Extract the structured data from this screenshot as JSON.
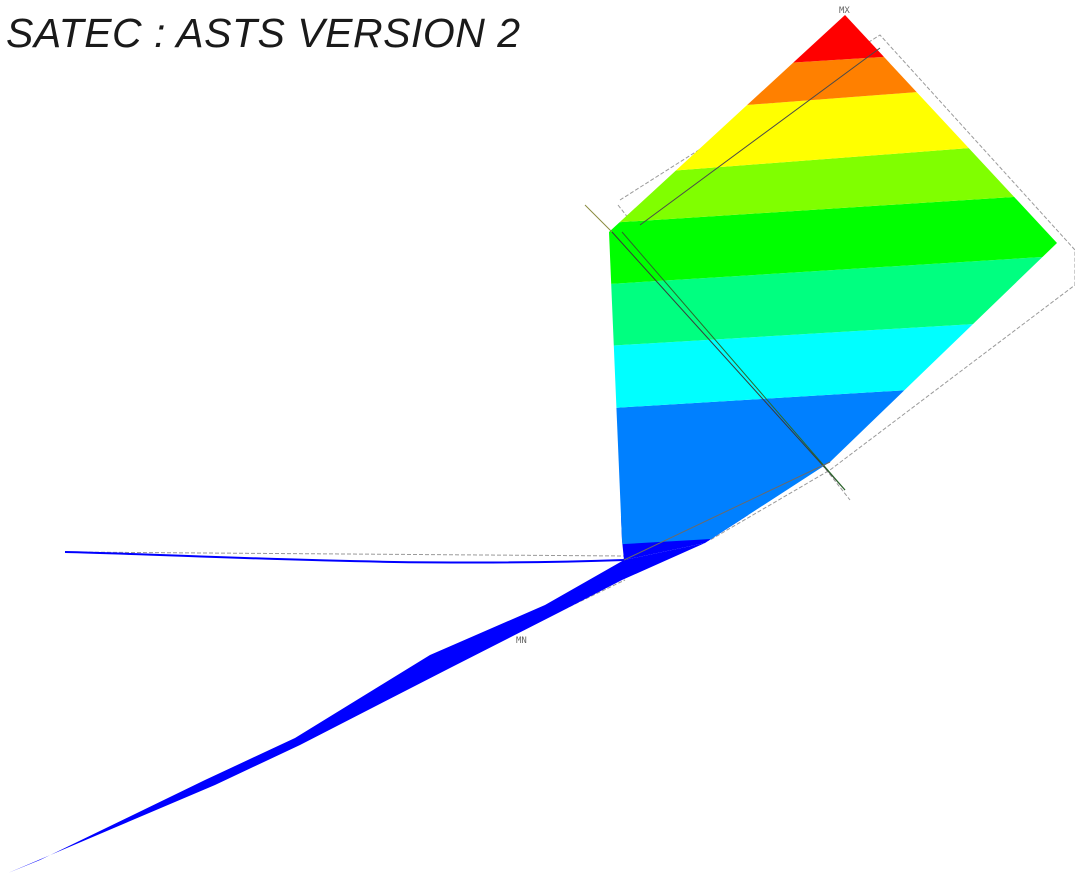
{
  "title": "SATEC : ASTS VERSION 2",
  "labels": {
    "max_marker": "MX",
    "min_marker": "MN"
  },
  "contour": {
    "band_colors": [
      "#0000ff",
      "#0080ff",
      "#00ffff",
      "#00ff80",
      "#00ff00",
      "#80ff00",
      "#ffff00",
      "#ff8000",
      "#ff0000"
    ]
  }
}
